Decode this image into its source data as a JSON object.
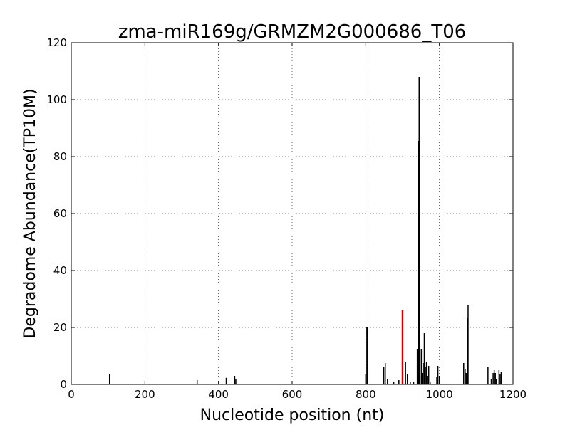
{
  "chart_data": {
    "type": "bar",
    "title": "zma-miR169g/GRMZM2G000686_T06",
    "xlabel": "Nucleotide position (nt)",
    "ylabel": "Degradome Abundance(TP10M)",
    "xlim": [
      0,
      1200
    ],
    "ylim": [
      0,
      120
    ],
    "xticks": [
      "0",
      "200",
      "400",
      "600",
      "800",
      "1000",
      "1200"
    ],
    "yticks": [
      "0",
      "20",
      "40",
      "60",
      "80",
      "100",
      "120"
    ],
    "grid": true,
    "default_color": "#000000",
    "highlight_color": "#cc0000",
    "series": [
      {
        "color": "#000000",
        "x": [
          104,
          342,
          421,
          444,
          447,
          800,
          803,
          805,
          849,
          853,
          859,
          876,
          890,
          908,
          913,
          921,
          930,
          940,
          943,
          945,
          947,
          951,
          953,
          956,
          959,
          962,
          965,
          968,
          971,
          975,
          993,
          996,
          1000,
          1066,
          1070,
          1073,
          1076,
          1078,
          1132,
          1141,
          1146,
          1149,
          1152,
          1155,
          1162,
          1165,
          1168
        ],
        "y": [
          3.5,
          1.5,
          2.3,
          3.0,
          2.0,
          3.5,
          20.0,
          20.0,
          6.0,
          7.5,
          2.0,
          1.0,
          1.5,
          8.0,
          3.5,
          1.0,
          1.0,
          12.5,
          85.5,
          108.0,
          3.0,
          12.5,
          4.0,
          7.5,
          18.0,
          6.0,
          8.0,
          3.0,
          6.5,
          1.0,
          2.5,
          6.5,
          3.0,
          7.5,
          5.5,
          4.0,
          23.5,
          28.0,
          6.0,
          2.0,
          4.0,
          5.0,
          4.0,
          2.0,
          5.0,
          3.5,
          4.5
        ]
      },
      {
        "color": "#cc0000",
        "x": [
          900
        ],
        "y": [
          26.0
        ]
      }
    ]
  }
}
